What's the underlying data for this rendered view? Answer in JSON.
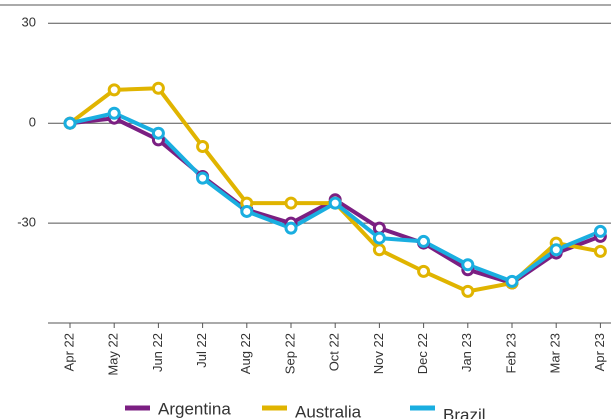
{
  "chart_data": {
    "type": "line",
    "categories": [
      "Apr 22",
      "May 22",
      "Jun 22",
      "Jul 22",
      "Aug 22",
      "Sep 22",
      "Oct 22",
      "Nov 22",
      "Dec 22",
      "Jan 23",
      "Feb 23",
      "Mar 23",
      "Apr 23"
    ],
    "series": [
      {
        "name": "Argentina",
        "color": "#7b1f82",
        "values": [
          0,
          1.5,
          -5,
          -16,
          -26,
          -30,
          -23,
          -31.5,
          -36,
          -44,
          -48,
          -39,
          -34
        ]
      },
      {
        "name": "Australia",
        "color": "#e0b400",
        "values": [
          0,
          10,
          10.5,
          -7,
          -24,
          -24,
          -24,
          -38,
          -44.5,
          -50.5,
          -48,
          -36,
          -38.5
        ]
      },
      {
        "name": "Brazil",
        "color": "#1aaee0",
        "values": [
          0,
          3,
          -3,
          -16.5,
          -26.5,
          -31.5,
          -24,
          -34.5,
          -35.5,
          -42.5,
          -47.5,
          -38,
          -32.5
        ]
      }
    ],
    "ylim": [
      -60,
      37
    ],
    "yticks": [
      30,
      0,
      -30
    ],
    "grid": true
  }
}
